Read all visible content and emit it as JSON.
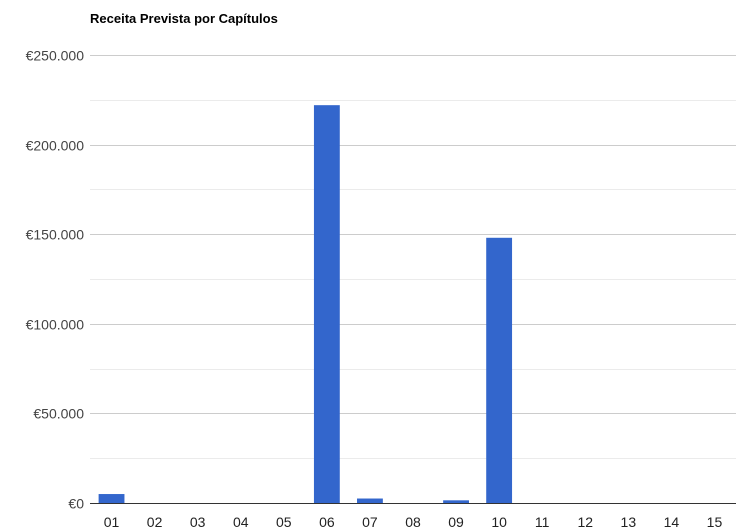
{
  "chart_data": {
    "type": "bar",
    "title": "Receita Prevista por Capítulos",
    "xlabel": "",
    "ylabel": "",
    "categories": [
      "01",
      "02",
      "03",
      "04",
      "05",
      "06",
      "07",
      "08",
      "09",
      "10",
      "11",
      "12",
      "13",
      "14",
      "15"
    ],
    "values": [
      5000,
      0,
      0,
      0,
      0,
      222000,
      2500,
      0,
      1500,
      148000,
      0,
      0,
      0,
      0,
      0
    ],
    "ylim": [
      0,
      250000
    ],
    "y_ticks": [
      {
        "value": 0,
        "label": "€0"
      },
      {
        "value": 50000,
        "label": "€50.000"
      },
      {
        "value": 100000,
        "label": "€100.000"
      },
      {
        "value": 150000,
        "label": "€150.000"
      },
      {
        "value": 200000,
        "label": "€200.000"
      },
      {
        "value": 250000,
        "label": "€250.000"
      }
    ],
    "minor_gridlines": true,
    "grid": true,
    "legend": "none",
    "colors": {
      "bar": "#3366cc",
      "gridline": "#cccccc",
      "minor_gridline": "#ebebeb",
      "baseline": "#333333"
    }
  }
}
